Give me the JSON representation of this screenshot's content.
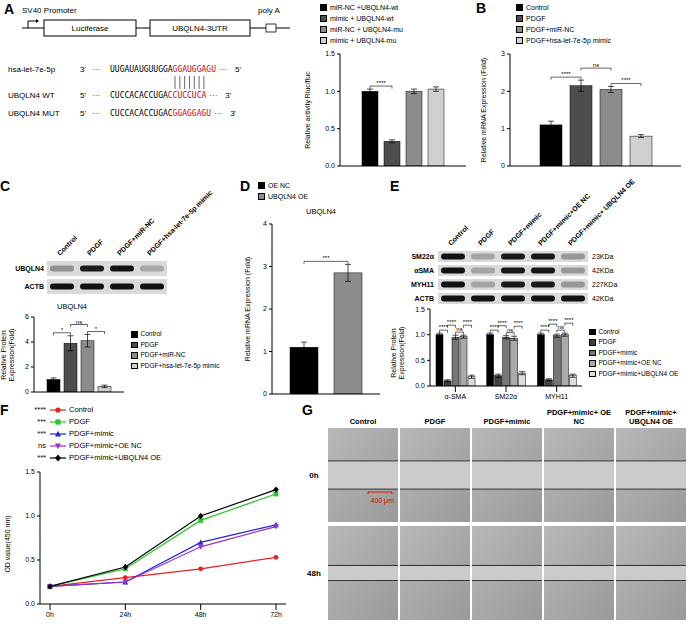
{
  "chart_data": [
    {
      "type": "bar",
      "categories": [
        null
      ],
      "y_label": "Relative activity Rluc/fluc",
      "ylim": [
        0,
        1.5
      ],
      "yticks": [
        {
          "value": 0,
          "label": "0.0"
        },
        0.5,
        {
          "value": 1,
          "label": "1.0"
        },
        1.5
      ],
      "tick_labels": "y",
      "legend": "top",
      "series": [
        {
          "name": "miR-NC +UBQLN4-wt",
          "color": "#000000",
          "values": [
            1.0
          ],
          "errors": [
            0.03
          ]
        },
        {
          "name": "mimic + UBQLN4-wt",
          "color": "#4d4d4d",
          "values": [
            0.33
          ],
          "errors": [
            0.02
          ]
        },
        {
          "name": "miR-NC + UBQLN4-mu",
          "color": "#8c8c8c",
          "values": [
            1.0
          ],
          "errors": [
            0.03
          ]
        },
        {
          "name": "mimic + UBQLN4-mu",
          "color": "#d0d0d0",
          "values": [
            1.03
          ],
          "errors": [
            0.03
          ]
        }
      ],
      "annotations": [
        {
          "from": 0,
          "to": 1,
          "label": "****"
        }
      ]
    },
    {
      "type": "bar",
      "panel": "B",
      "categories": [
        null
      ],
      "y_label": "Relative mRNA Expression (Fold)",
      "ylim": [
        0,
        3
      ],
      "yticks": [
        0,
        1,
        2,
        3
      ],
      "tick_labels": "y",
      "legend": "top",
      "series": [
        {
          "name": "Control",
          "color": "#000000",
          "values": [
            1.1
          ],
          "errors": [
            0.1
          ]
        },
        {
          "name": "PDGF",
          "color": "#4d4d4d",
          "values": [
            2.15
          ],
          "errors": [
            0.15
          ]
        },
        {
          "name": "PDGF+miR-NC",
          "color": "#8c8c8c",
          "values": [
            2.05
          ],
          "errors": [
            0.08
          ]
        },
        {
          "name": "PDGF+hsa-let-7e-5p mimic",
          "color": "#d0d0d0",
          "values": [
            0.8
          ],
          "errors": [
            0.04
          ]
        }
      ],
      "annotations": [
        {
          "from": 0,
          "to": 1,
          "label": "****"
        },
        {
          "from": 1,
          "to": 2,
          "label": "ns"
        },
        {
          "from": 2,
          "to": 3,
          "label": "****"
        }
      ]
    },
    {
      "type": "bar",
      "panel": "C",
      "title": "UBQLN4",
      "categories": [
        null
      ],
      "y_label": "Relative Protein Expression(Fold)",
      "ylim": [
        0,
        6
      ],
      "yticks": [
        0,
        2,
        4,
        6
      ],
      "tick_labels": "y",
      "legend": "right",
      "series": [
        {
          "name": "Control",
          "color": "#000000",
          "values": [
            1.0
          ],
          "errors": [
            0.12
          ]
        },
        {
          "name": "PDGF",
          "color": "#4d4d4d",
          "values": [
            3.9
          ],
          "errors": [
            0.6
          ]
        },
        {
          "name": "PDGF+miR-NC",
          "color": "#8c8c8c",
          "values": [
            4.1
          ],
          "errors": [
            0.5
          ]
        },
        {
          "name": "PDGF+hsa-let-7e-5p mimic",
          "color": "#d0d0d0",
          "values": [
            0.45
          ],
          "errors": [
            0.1
          ]
        }
      ],
      "annotations": [
        {
          "from": 0,
          "to": 1,
          "label": "*"
        },
        {
          "from": 1,
          "to": 2,
          "label": "ns"
        },
        {
          "from": 2,
          "to": 3,
          "label": "*"
        }
      ]
    },
    {
      "type": "bar",
      "panel": "D",
      "title": "UBQLN4",
      "categories": [
        null
      ],
      "y_label": "Relative mRNA Expression (Fold)",
      "ylim": [
        0,
        4
      ],
      "yticks": [
        0,
        1,
        2,
        3,
        4
      ],
      "tick_labels": "y",
      "legend": "top",
      "series": [
        {
          "name": "OE NC",
          "color": "#000000",
          "values": [
            1.1
          ],
          "errors": [
            0.12
          ]
        },
        {
          "name": "UBQLN4 OE",
          "color": "#8c8c8c",
          "values": [
            2.85
          ],
          "errors": [
            0.2
          ]
        }
      ],
      "annotations": [
        {
          "from": 0,
          "to": 1,
          "label": "***"
        }
      ]
    },
    {
      "type": "bar",
      "panel": "E",
      "categories": [
        "α-SMA",
        "SM22α",
        "MYH11"
      ],
      "y_label": "Relative Protein Expression(Fold)",
      "ylim": [
        0,
        1.5
      ],
      "yticks": [
        {
          "value": 0,
          "label": "0.0"
        },
        0.5,
        {
          "value": 1,
          "label": "1.0"
        },
        1.5
      ],
      "legend": "right",
      "series": [
        {
          "name": "Control",
          "color": "#000000",
          "values": [
            1.0,
            1.0,
            1.0
          ],
          "errors": [
            0.03,
            0.03,
            0.03
          ]
        },
        {
          "name": "PDGF",
          "color": "#404040",
          "values": [
            0.1,
            0.2,
            0.12
          ],
          "errors": [
            0.02,
            0.03,
            0.02
          ]
        },
        {
          "name": "PDGF+mimic",
          "color": "#777777",
          "values": [
            0.95,
            0.95,
            0.98
          ],
          "errors": [
            0.04,
            0.03,
            0.03
          ]
        },
        {
          "name": "PDGF+mimic+OE NC",
          "color": "#aaaaaa",
          "values": [
            0.96,
            0.93,
            1.0
          ],
          "errors": [
            0.03,
            0.04,
            0.03
          ]
        },
        {
          "name": "PDGF+mimic+UBQLN4 OE",
          "color": "#dddddd",
          "values": [
            0.18,
            0.25,
            0.2
          ],
          "errors": [
            0.03,
            0.03,
            0.03
          ]
        }
      ],
      "annotations": [
        {
          "category": "α-SMA",
          "from": 0,
          "to": 1,
          "label": "****"
        },
        {
          "category": "α-SMA",
          "from": 1,
          "to": 2,
          "label": "****"
        },
        {
          "category": "α-SMA",
          "from": 2,
          "to": 3,
          "label": "ns"
        },
        {
          "category": "α-SMA",
          "from": 3,
          "to": 4,
          "label": "****"
        },
        {
          "category": "SM22α",
          "from": 0,
          "to": 1,
          "label": "****"
        },
        {
          "category": "SM22α",
          "from": 1,
          "to": 2,
          "label": "****"
        },
        {
          "category": "SM22α",
          "from": 2,
          "to": 3,
          "label": "ns"
        },
        {
          "category": "SM22α",
          "from": 3,
          "to": 4,
          "label": "****"
        },
        {
          "category": "MYH11",
          "from": 0,
          "to": 1,
          "label": "****"
        },
        {
          "category": "MYH11",
          "from": 1,
          "to": 2,
          "label": "****"
        },
        {
          "category": "MYH11",
          "from": 2,
          "to": 3,
          "label": "ns"
        },
        {
          "category": "MYH11",
          "from": 3,
          "to": 4,
          "label": "****"
        }
      ]
    },
    {
      "type": "line",
      "panel": "F",
      "x": [
        "0h",
        "24h",
        "48h",
        "72h"
      ],
      "y_label": "OD value(450 nm)",
      "ylim": [
        0,
        1.5
      ],
      "yticks": [
        {
          "value": 0,
          "label": "0.0"
        },
        0.5,
        {
          "value": 1,
          "label": "1.0"
        },
        1.5
      ],
      "legend": "top",
      "series": [
        {
          "name": "Control",
          "color": "#e8201e",
          "marker": "circle",
          "significance": "****",
          "values": [
            0.2,
            0.3,
            0.4,
            0.53
          ]
        },
        {
          "name": "PDGF",
          "color": "#2ec42e",
          "marker": "square",
          "significance": "***",
          "values": [
            0.2,
            0.4,
            0.95,
            1.25
          ]
        },
        {
          "name": "PDGF+mimic",
          "color": "#2222dd",
          "marker": "triangle",
          "significance": "***",
          "values": [
            0.2,
            0.25,
            0.7,
            0.9
          ]
        },
        {
          "name": "PDGF+mimic+OE NC",
          "color": "#9933cc",
          "marker": "triangle-down",
          "significance": "ns",
          "values": [
            0.2,
            0.25,
            0.65,
            0.88
          ]
        },
        {
          "name": "PDGF+mimic+UBQLN4 OE",
          "color": "#000000",
          "marker": "diamond",
          "significance": "***",
          "values": [
            0.2,
            0.42,
            1.0,
            1.3
          ]
        }
      ]
    }
  ],
  "diagram": {
    "panel": "A",
    "promoter": "SV40 Promoter",
    "boxes": [
      "Luciferase",
      "UBQLN4-3UTR"
    ],
    "poly_a": "poly A",
    "gap": "···",
    "sequences": [
      {
        "label": "hsa-let-7e-5p",
        "left": "3'",
        "seq": "UUGAUAUGUUGGA",
        "seed": "GGAUGGAGU",
        "right": "5'"
      },
      {
        "label": "UBQLN4 WT",
        "left": "5'",
        "seq": "CUCCACACCUGA",
        "seed": "CCUCCUCA",
        "right": "3'"
      },
      {
        "label": "UBQLN4 MUT",
        "left": "5'",
        "seq": "CUCCACACCUGAC",
        "seed": "GGAGGAGU",
        "right": "3'"
      }
    ]
  },
  "blots": [
    {
      "lanes": [
        "Control",
        "PDGF",
        "PDGF+miR-NC",
        "PDGF+hsa-let-7e-5p mimic"
      ],
      "rows": [
        {
          "label": "UBQLN4"
        },
        {
          "label": "ACTB"
        }
      ]
    },
    {
      "lanes": [
        "Control",
        "PDGF",
        "PDGF+mimic",
        "PDGF+mimic+OE NC",
        "PDGF+mimic+ UBQLN4 OE"
      ],
      "rows": [
        {
          "label": "SM22α",
          "size": "23KDa"
        },
        {
          "label": "αSMA",
          "size": "42KDa"
        },
        {
          "label": "MYH11",
          "size": "227KDa"
        },
        {
          "label": "ACTB",
          "size": "42KDa"
        }
      ]
    }
  ],
  "images": {
    "panel": "G",
    "columns": [
      "Control",
      "PDGF",
      "PDGF+mimic",
      "PDGF+mimic+ OE NC",
      "PDGF+mimic+ UBQLN4 OE"
    ],
    "rows": [
      "0h",
      "48h"
    ],
    "scale_bar": "400 μm"
  }
}
